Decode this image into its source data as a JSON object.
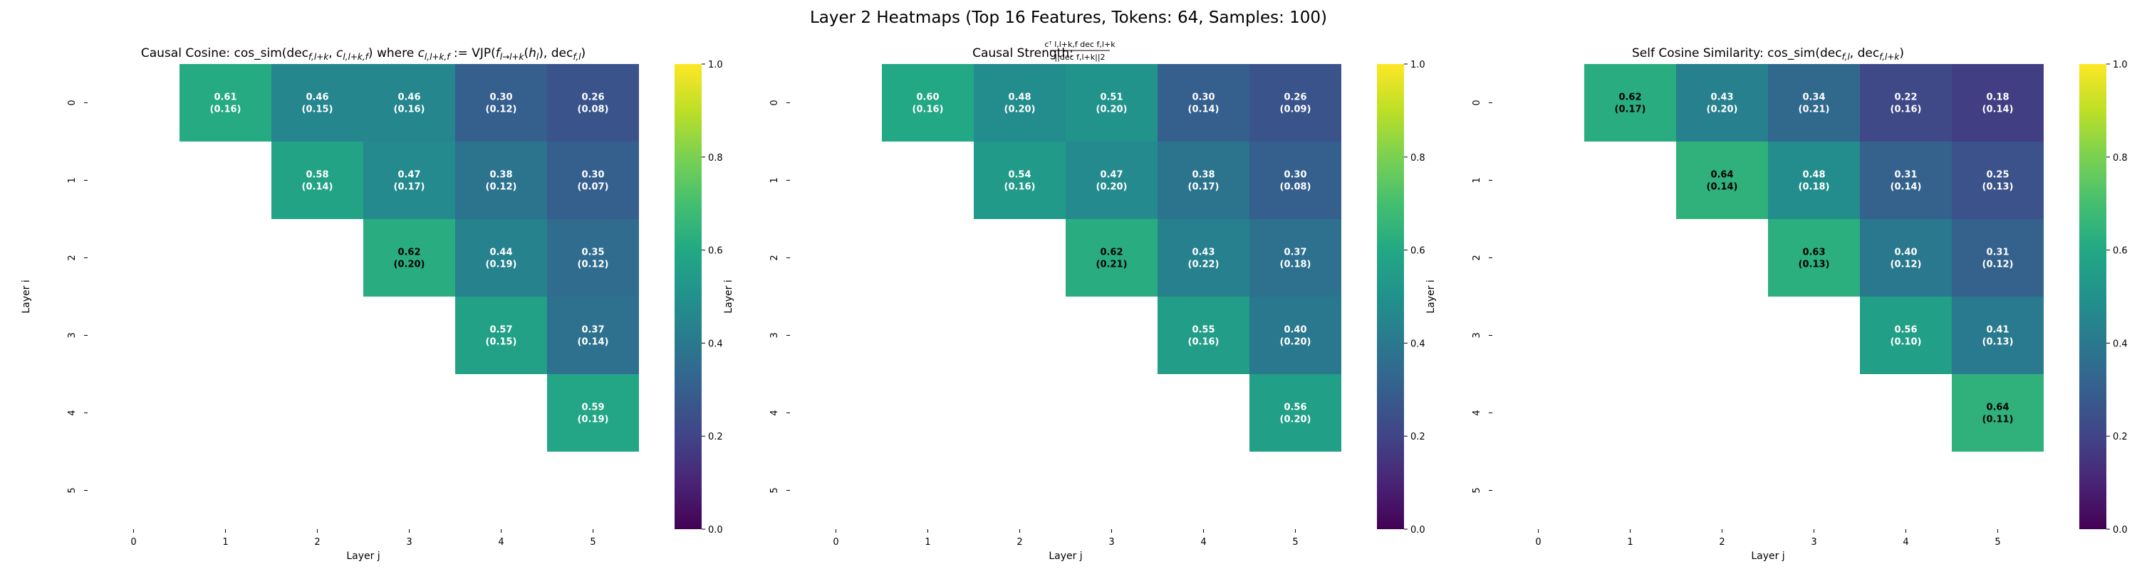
{
  "figure": {
    "title": "Layer 2 Heatmaps (Top 16 Features, Tokens: 64, Samples: 100)"
  },
  "chart_data": [
    {
      "type": "heatmap",
      "title": "Causal Cosine: cos_sim(dec_{f,l+k}, c_{l,l+k,f}) where c_{l,l+k,f} := VJP(f_{l→l+k}(h_l), dec_{f,l})",
      "xlabel": "Layer j",
      "ylabel": "Layer i",
      "x_ticks": [
        "0",
        "1",
        "2",
        "3",
        "4",
        "5"
      ],
      "y_ticks": [
        "0",
        "1",
        "2",
        "3",
        "4",
        "5"
      ],
      "colorbar_ticks": [
        "0.0",
        "0.2",
        "0.4",
        "0.6",
        "0.8",
        "1.0"
      ],
      "vmin": 0,
      "vmax": 1,
      "colormap": "viridis",
      "cells": [
        {
          "i": 0,
          "j": 1,
          "value": 0.61,
          "std": 0.16
        },
        {
          "i": 0,
          "j": 2,
          "value": 0.46,
          "std": 0.15
        },
        {
          "i": 0,
          "j": 3,
          "value": 0.46,
          "std": 0.16
        },
        {
          "i": 0,
          "j": 4,
          "value": 0.3,
          "std": 0.12
        },
        {
          "i": 0,
          "j": 5,
          "value": 0.26,
          "std": 0.08
        },
        {
          "i": 1,
          "j": 2,
          "value": 0.58,
          "std": 0.14
        },
        {
          "i": 1,
          "j": 3,
          "value": 0.47,
          "std": 0.17
        },
        {
          "i": 1,
          "j": 4,
          "value": 0.38,
          "std": 0.12
        },
        {
          "i": 1,
          "j": 5,
          "value": 0.3,
          "std": 0.07
        },
        {
          "i": 2,
          "j": 3,
          "value": 0.62,
          "std": 0.2
        },
        {
          "i": 2,
          "j": 4,
          "value": 0.44,
          "std": 0.19
        },
        {
          "i": 2,
          "j": 5,
          "value": 0.35,
          "std": 0.12
        },
        {
          "i": 3,
          "j": 4,
          "value": 0.57,
          "std": 0.15
        },
        {
          "i": 3,
          "j": 5,
          "value": 0.37,
          "std": 0.14
        },
        {
          "i": 4,
          "j": 5,
          "value": 0.59,
          "std": 0.19
        }
      ]
    },
    {
      "type": "heatmap",
      "title": "Causal Strength: c^T_{l,l+k,f} dec_{f,l+k} / ||dec_{f,l+k}||_2",
      "xlabel": "Layer j",
      "ylabel": "Layer i",
      "x_ticks": [
        "0",
        "1",
        "2",
        "3",
        "4",
        "5"
      ],
      "y_ticks": [
        "0",
        "1",
        "2",
        "3",
        "4",
        "5"
      ],
      "colorbar_ticks": [
        "0.0",
        "0.2",
        "0.4",
        "0.6",
        "0.8",
        "1.0"
      ],
      "vmin": 0,
      "vmax": 1,
      "colormap": "viridis",
      "cells": [
        {
          "i": 0,
          "j": 1,
          "value": 0.6,
          "std": 0.16
        },
        {
          "i": 0,
          "j": 2,
          "value": 0.48,
          "std": 0.2
        },
        {
          "i": 0,
          "j": 3,
          "value": 0.51,
          "std": 0.2
        },
        {
          "i": 0,
          "j": 4,
          "value": 0.3,
          "std": 0.14
        },
        {
          "i": 0,
          "j": 5,
          "value": 0.26,
          "std": 0.09
        },
        {
          "i": 1,
          "j": 2,
          "value": 0.54,
          "std": 0.16
        },
        {
          "i": 1,
          "j": 3,
          "value": 0.47,
          "std": 0.2
        },
        {
          "i": 1,
          "j": 4,
          "value": 0.38,
          "std": 0.17
        },
        {
          "i": 1,
          "j": 5,
          "value": 0.3,
          "std": 0.08
        },
        {
          "i": 2,
          "j": 3,
          "value": 0.62,
          "std": 0.21
        },
        {
          "i": 2,
          "j": 4,
          "value": 0.43,
          "std": 0.22
        },
        {
          "i": 2,
          "j": 5,
          "value": 0.37,
          "std": 0.18
        },
        {
          "i": 3,
          "j": 4,
          "value": 0.55,
          "std": 0.16
        },
        {
          "i": 3,
          "j": 5,
          "value": 0.4,
          "std": 0.2
        },
        {
          "i": 4,
          "j": 5,
          "value": 0.56,
          "std": 0.2
        }
      ]
    },
    {
      "type": "heatmap",
      "title": "Self Cosine Similarity: cos_sim(dec_{f,l}, dec_{f,l+k})",
      "xlabel": "Layer j",
      "ylabel": "Layer i",
      "x_ticks": [
        "0",
        "1",
        "2",
        "3",
        "4",
        "5"
      ],
      "y_ticks": [
        "0",
        "1",
        "2",
        "3",
        "4",
        "5"
      ],
      "colorbar_ticks": [
        "0.0",
        "0.2",
        "0.4",
        "0.6",
        "0.8",
        "1.0"
      ],
      "vmin": 0,
      "vmax": 1,
      "colormap": "viridis",
      "cells": [
        {
          "i": 0,
          "j": 1,
          "value": 0.62,
          "std": 0.17
        },
        {
          "i": 0,
          "j": 2,
          "value": 0.43,
          "std": 0.2
        },
        {
          "i": 0,
          "j": 3,
          "value": 0.34,
          "std": 0.21
        },
        {
          "i": 0,
          "j": 4,
          "value": 0.22,
          "std": 0.16
        },
        {
          "i": 0,
          "j": 5,
          "value": 0.18,
          "std": 0.14
        },
        {
          "i": 1,
          "j": 2,
          "value": 0.64,
          "std": 0.14
        },
        {
          "i": 1,
          "j": 3,
          "value": 0.48,
          "std": 0.18
        },
        {
          "i": 1,
          "j": 4,
          "value": 0.31,
          "std": 0.14
        },
        {
          "i": 1,
          "j": 5,
          "value": 0.25,
          "std": 0.13
        },
        {
          "i": 2,
          "j": 3,
          "value": 0.63,
          "std": 0.13
        },
        {
          "i": 2,
          "j": 4,
          "value": 0.4,
          "std": 0.12
        },
        {
          "i": 2,
          "j": 5,
          "value": 0.31,
          "std": 0.12
        },
        {
          "i": 3,
          "j": 4,
          "value": 0.56,
          "std": 0.1
        },
        {
          "i": 3,
          "j": 5,
          "value": 0.41,
          "std": 0.13
        },
        {
          "i": 4,
          "j": 5,
          "value": 0.64,
          "std": 0.11
        }
      ]
    }
  ]
}
